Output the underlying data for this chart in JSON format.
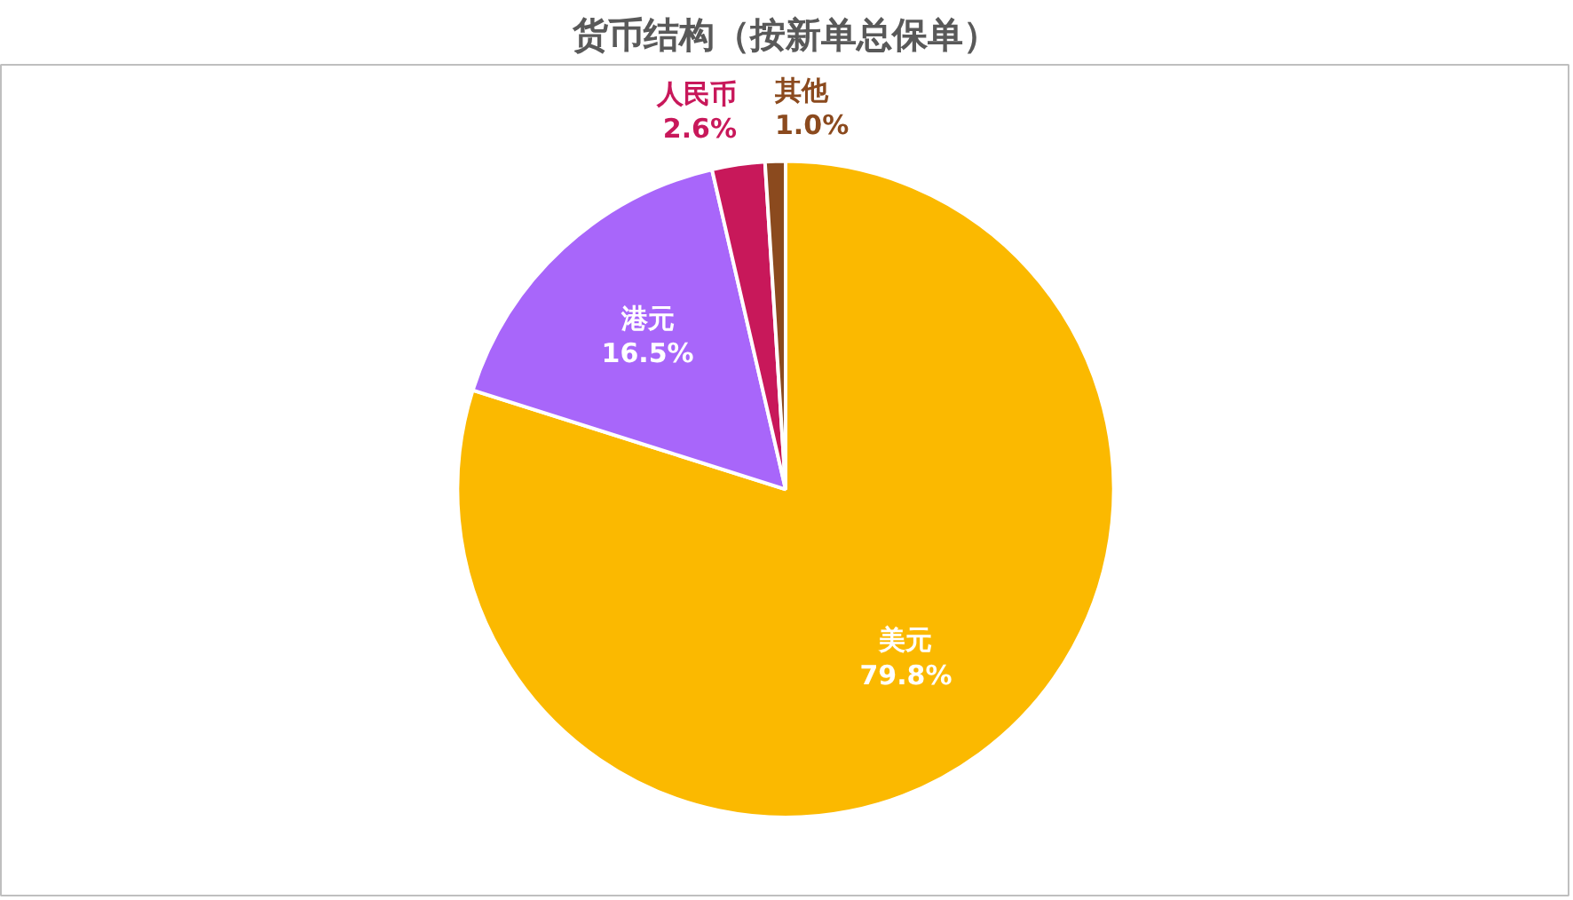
{
  "chart_data": {
    "type": "pie",
    "title": "货币结构（按新单总保单）",
    "categories": [
      "美元",
      "港元",
      "人民币",
      "其他"
    ],
    "values": [
      79.8,
      16.5,
      2.6,
      1.0
    ],
    "colors": [
      "#fbb900",
      "#a866fa",
      "#c8185a",
      "#8b4a1e"
    ],
    "value_labels": [
      "79.8%",
      "16.5%",
      "2.6%",
      "1.0%"
    ],
    "legend": false
  }
}
